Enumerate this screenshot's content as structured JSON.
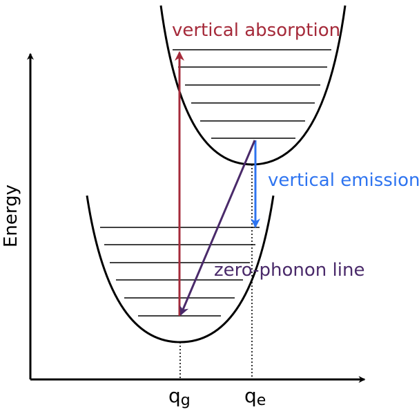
{
  "axes": {
    "y_label": "Energy",
    "x_ticks": {
      "ground": "q",
      "ground_sub": "g",
      "excited": "q",
      "excited_sub": "e"
    }
  },
  "transitions": {
    "absorption": {
      "label": "vertical absorption",
      "color": "#a52a3a"
    },
    "emission": {
      "label": "vertical emission",
      "color": "#2e74f0"
    },
    "zero_phonon": {
      "label": "zero-phonon line",
      "color": "#4a2a6a"
    }
  },
  "curves": {
    "ground_levels": 6,
    "excited_levels": 6
  }
}
